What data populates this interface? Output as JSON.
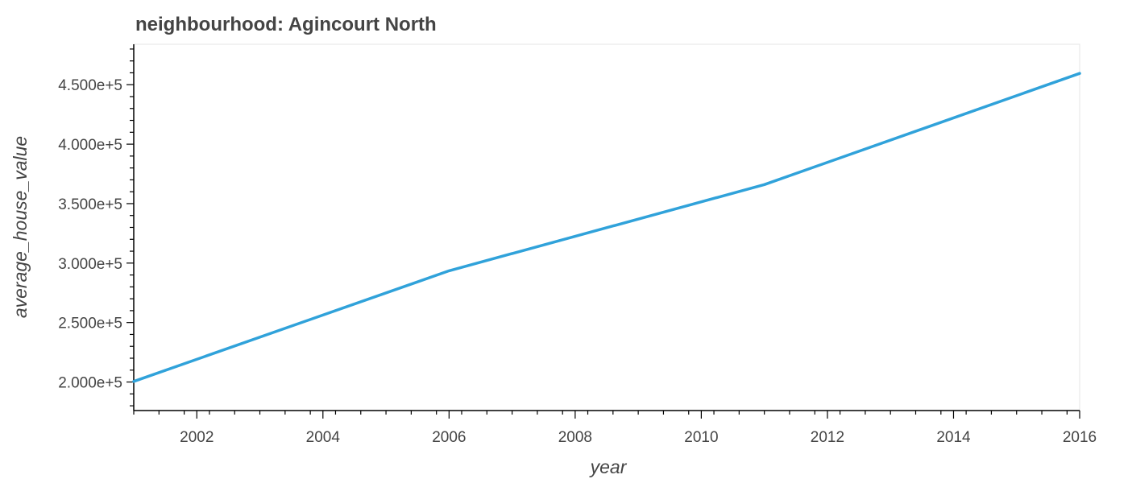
{
  "chart_data": {
    "type": "line",
    "title": "neighbourhood: Agincourt North",
    "xlabel": "year",
    "ylabel": "average_house_value",
    "x": [
      2001,
      2006,
      2011,
      2016
    ],
    "series": [
      {
        "values": [
          200500,
          293500,
          366000,
          459500
        ]
      }
    ],
    "xlim": [
      2001,
      2016
    ],
    "ylim": [
      176000,
      484000
    ],
    "x_ticks": [
      2002,
      2004,
      2006,
      2008,
      2010,
      2012,
      2014,
      2016
    ],
    "x_tick_labels": [
      "2002",
      "2004",
      "2006",
      "2008",
      "2010",
      "2012",
      "2014",
      "2016"
    ],
    "y_ticks": [
      200000,
      250000,
      300000,
      350000,
      400000,
      450000
    ],
    "y_tick_labels": [
      "2.000e+5",
      "2.500e+5",
      "3.000e+5",
      "3.500e+5",
      "4.000e+5",
      "4.500e+5"
    ],
    "grid": false,
    "line_color": "#30a2da",
    "axis_color": "#000000",
    "frame_color": "#e5e5e5"
  }
}
